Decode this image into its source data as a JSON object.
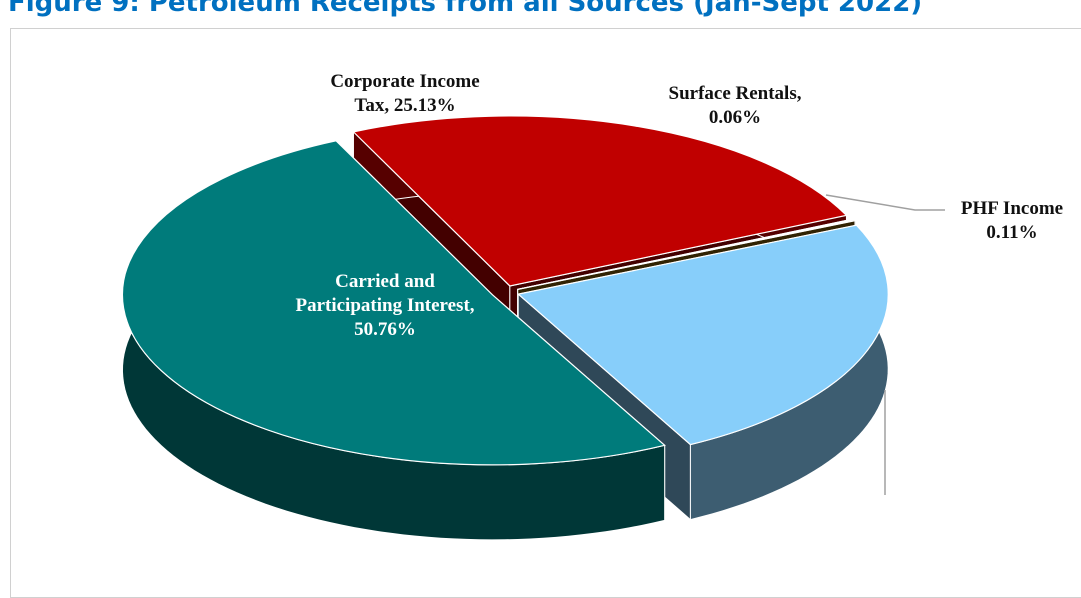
{
  "chart_data": {
    "type": "pie3d",
    "title": "Figure 9: Petroleum Receipts from all Sources (Jan-Sept 2022)",
    "categories": [
      "Corporate Income Tax,",
      "Surface Rentals,",
      "PHF Income",
      null,
      "Carried and Participating Interest,"
    ],
    "values": [
      25.13,
      0.06,
      0.11,
      23.94,
      50.76
    ],
    "value_labels": [
      "25.13%",
      "0.06%",
      "0.11%",
      null,
      "50.76%"
    ],
    "colors": [
      "#c00000",
      "#9a9a9a",
      "#8b6508",
      "#87cefa",
      "#007b7b"
    ]
  }
}
